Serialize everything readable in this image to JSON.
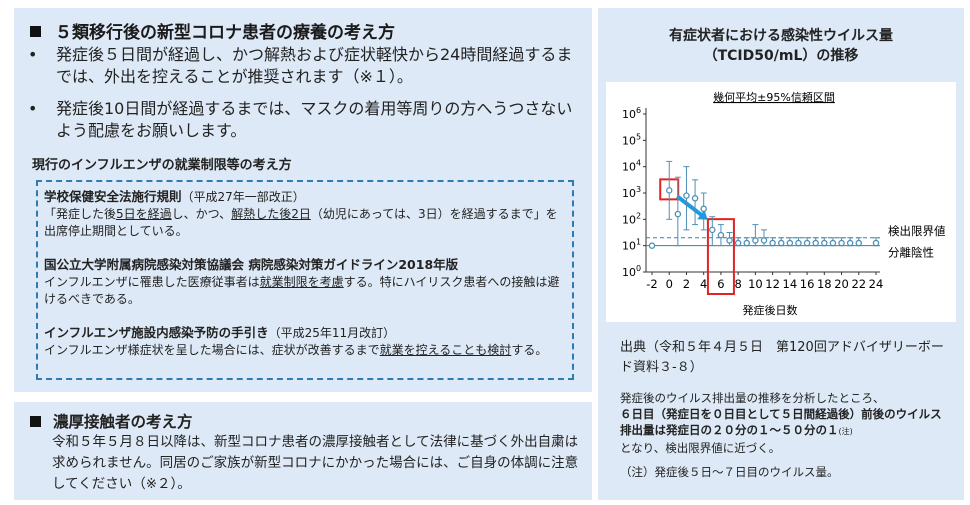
{
  "left_top": {
    "heading": "５類移行後の新型コロナ患者の療養の考え方",
    "bullets": [
      "発症後５日間が経過し、かつ解熱および症状軽快から24時間経過するまでは、外出を控えることが推奨されます（※１）。",
      "発症後10日間が経過するまでは、マスクの着用等周りの方へうつさないよう配慮をお願いします。"
    ],
    "subheading": "現行のインフルエンザの就業制限等の考え方",
    "rules": [
      {
        "title": "学校保健安全法施行規則",
        "note": "（平成27年一部改正）",
        "body_pre": "「発症した後",
        "body_u1": "5日を経過",
        "body_mid": "し、かつ、",
        "body_u2": "解熱した後2日",
        "body_post": "（幼児にあっては、3日）を経過するまで」を出席停止期間としている。"
      },
      {
        "title": "国公立大学附属病院感染対策協議会 病院感染対策ガイドライン2018年版",
        "body_pre": "インフルエンザに罹患した医療従事者は",
        "body_u1": "就業制限を考慮",
        "body_post": "する。特にハイリスク患者への接触は避けるべきである。"
      },
      {
        "title": "インフルエンザ施設内感染予防の手引き",
        "note": "（平成25年11月改訂）",
        "body_pre": "インフルエンザ様症状を呈した場合には、症状が改善するまで",
        "body_u1": "就業を控えることも検討",
        "body_post": "する。"
      }
    ]
  },
  "left_bottom": {
    "heading": "濃厚接触者の考え方",
    "body": "令和５年５月８日以降は、新型コロナ患者の濃厚接触者として法律に基づく外出自粛は求められません。同居のご家族が新型コロナにかかった場合には、ご自身の体調に注意してください（※２）。"
  },
  "right": {
    "title_line1": "有症状者における感染性ウイルス量",
    "title_line2": "（TCID50/mL）の推移",
    "source": "出典（令和５年４月５日　第120回アドバイザリーボード資料３-８）",
    "analysis_pre": "発症後のウイルス排出量の推移を分析したところ、",
    "analysis_bold": "６日目（発症日を０日目として５日間経過後）前後のウイルス排出量は発症日の２０分の１～５０分の１",
    "analysis_sup": "(注)",
    "analysis_post": "となり、検出限界値に近づく。",
    "note": "（注）発症後５日～７日目のウイルス量。"
  },
  "chart_data": {
    "type": "scatter",
    "title": "有症状者における感染性ウイルス量（TCID50/mL）の推移",
    "subtitle": "幾何平均±95%信頼区間",
    "xlabel": "発症後日数",
    "ylabel": "",
    "x_ticks": [
      "-2",
      "0",
      "2",
      "4",
      "6",
      "8",
      "10",
      "12",
      "14",
      "16",
      "18",
      "20",
      "22",
      "24"
    ],
    "y_ticks": [
      "10^0",
      "10^1",
      "10^2",
      "10^3",
      "10^4",
      "10^5",
      "10^6"
    ],
    "xlim": [
      -2,
      24
    ],
    "ylim_log10": [
      0,
      6
    ],
    "y_scale": "log",
    "series": [
      {
        "x": [
          -2,
          0,
          1,
          2,
          3,
          4,
          5,
          6,
          7,
          8,
          9,
          10,
          11,
          12,
          13,
          14,
          15,
          16,
          17,
          18,
          19,
          20,
          21,
          22,
          24
        ],
        "log10_mean": [
          1.0,
          3.1,
          2.2,
          2.9,
          2.8,
          2.4,
          1.6,
          1.4,
          1.2,
          1.1,
          1.1,
          1.2,
          1.2,
          1.1,
          1.1,
          1.1,
          1.1,
          1.1,
          1.1,
          1.1,
          1.1,
          1.1,
          1.1,
          1.1,
          1.1
        ],
        "log10_lower": [
          1.0,
          2.0,
          1.0,
          1.6,
          1.8,
          1.6,
          1.0,
          1.0,
          1.0,
          1.0,
          1.0,
          1.0,
          1.0,
          1.0,
          1.0,
          1.0,
          1.0,
          1.0,
          1.0,
          1.0,
          1.0,
          1.0,
          1.0,
          1.0,
          1.0
        ],
        "log10_upper": [
          1.0,
          4.2,
          3.6,
          4.0,
          3.5,
          3.0,
          2.1,
          1.8,
          1.5,
          1.3,
          1.3,
          1.8,
          1.6,
          1.3,
          1.3,
          1.3,
          1.3,
          1.3,
          1.3,
          1.3,
          1.3,
          1.3,
          1.3,
          1.3,
          1.3
        ]
      }
    ],
    "reference_lines": [
      {
        "label": "検出限界値",
        "log10_value": 1.3,
        "style": "dashed"
      },
      {
        "label": "分離陰性",
        "log10_value": 1.0,
        "style": "solid"
      }
    ],
    "highlight_x": [
      0,
      6
    ],
    "colors": {
      "marker": "#4f8fb5",
      "highlight": "#e02424",
      "arrow": "#1e9be0"
    }
  }
}
